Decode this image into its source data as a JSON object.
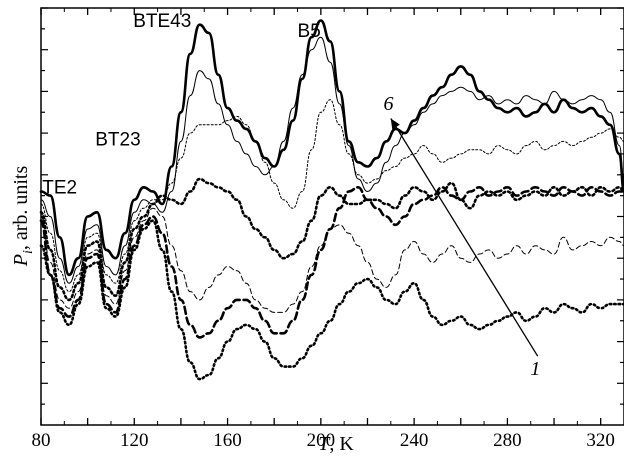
{
  "chart_data": {
    "type": "line",
    "title": "",
    "xlabel": "T, K",
    "ylabel": "P_i, arb. units",
    "xlim": [
      80,
      330
    ],
    "ylim": [
      0,
      10
    ],
    "x_ticks": [
      80,
      100,
      120,
      140,
      160,
      180,
      200,
      220,
      240,
      260,
      280,
      300,
      320
    ],
    "x_tick_labels": [
      "80",
      "120",
      "160",
      "200",
      "240",
      "280",
      "320"
    ],
    "y_tick_labels_shown": false,
    "grid": false,
    "legend": "none",
    "annotations": [
      {
        "text": "TE2",
        "x": 88,
        "y": 5.55
      },
      {
        "text": "BT23",
        "x": 113,
        "y": 6.7
      },
      {
        "text": "BTE43",
        "x": 132,
        "y": 9.55
      },
      {
        "text": "B5",
        "x": 195,
        "y": 9.3
      },
      {
        "text": "6",
        "x": 229,
        "y": 7.55
      },
      {
        "text": "1",
        "x": 292,
        "y": 1.2
      }
    ],
    "arrow": {
      "from": [
        293,
        1.65
      ],
      "to": [
        230,
        7.35
      ],
      "label_from": "1",
      "label_to": "6"
    },
    "series": [
      {
        "style": "thick-solid",
        "x": [
          80,
          84,
          88,
          92,
          96,
          100,
          104,
          108,
          112,
          116,
          120,
          124,
          128,
          132,
          136,
          140,
          144,
          148,
          152,
          156,
          160,
          164,
          168,
          172,
          176,
          180,
          184,
          188,
          192,
          196,
          200,
          204,
          208,
          212,
          216,
          220,
          224,
          228,
          232,
          236,
          240,
          244,
          248,
          252,
          256,
          260,
          264,
          268,
          272,
          276,
          280,
          284,
          288,
          292,
          296,
          300,
          304,
          308,
          312,
          316,
          320,
          324,
          328,
          330
        ],
        "y": [
          5.6,
          5.5,
          4.5,
          3.6,
          4.0,
          5.0,
          5.1,
          4.2,
          4.0,
          4.6,
          5.4,
          5.7,
          5.6,
          5.3,
          6.2,
          7.5,
          8.9,
          9.6,
          9.4,
          8.4,
          7.6,
          7.3,
          7.1,
          6.8,
          6.4,
          6.2,
          6.6,
          7.3,
          8.3,
          9.3,
          9.7,
          9.2,
          8.0,
          6.8,
          6.3,
          6.2,
          6.4,
          6.8,
          7.1,
          7.0,
          7.3,
          7.6,
          7.9,
          8.1,
          8.4,
          8.6,
          8.4,
          8.0,
          7.8,
          7.6,
          7.5,
          7.6,
          7.4,
          7.5,
          7.7,
          7.5,
          7.8,
          7.6,
          7.5,
          7.6,
          7.4,
          7.2,
          6.5,
          5.6
        ]
      },
      {
        "style": "thin-solid",
        "x": [
          80,
          84,
          88,
          92,
          96,
          100,
          104,
          108,
          112,
          116,
          120,
          124,
          128,
          132,
          136,
          140,
          144,
          148,
          152,
          156,
          160,
          164,
          168,
          172,
          176,
          180,
          184,
          188,
          192,
          196,
          200,
          204,
          208,
          212,
          216,
          220,
          224,
          228,
          232,
          236,
          240,
          244,
          248,
          252,
          256,
          260,
          264,
          268,
          272,
          276,
          280,
          284,
          288,
          292,
          296,
          300,
          304,
          308,
          312,
          316,
          320,
          324,
          328,
          330
        ],
        "y": [
          5.4,
          5.0,
          4.0,
          3.4,
          3.8,
          4.7,
          4.8,
          3.8,
          3.6,
          4.3,
          5.1,
          5.4,
          5.3,
          5.1,
          5.6,
          6.8,
          7.9,
          8.5,
          8.3,
          7.7,
          7.2,
          6.8,
          6.5,
          6.2,
          6.0,
          6.2,
          6.8,
          7.6,
          8.4,
          9.0,
          9.3,
          8.7,
          7.7,
          6.7,
          5.9,
          5.6,
          5.8,
          6.3,
          6.7,
          7.0,
          7.2,
          7.5,
          7.7,
          7.9,
          8.0,
          8.1,
          8.0,
          7.8,
          7.9,
          7.7,
          7.8,
          7.7,
          7.9,
          7.8,
          7.7,
          8.0,
          7.8,
          7.7,
          7.8,
          7.9,
          7.8,
          7.5,
          6.7,
          5.9
        ]
      },
      {
        "style": "thin-dashed",
        "x": [
          80,
          84,
          88,
          92,
          96,
          100,
          104,
          108,
          112,
          116,
          120,
          124,
          128,
          132,
          136,
          140,
          144,
          148,
          152,
          156,
          160,
          164,
          168,
          172,
          176,
          180,
          184,
          188,
          192,
          196,
          200,
          204,
          208,
          212,
          216,
          220,
          224,
          228,
          232,
          236,
          240,
          244,
          248,
          252,
          256,
          260,
          264,
          268,
          272,
          276,
          280,
          284,
          288,
          292,
          296,
          300,
          304,
          308,
          312,
          316,
          320,
          324,
          328,
          330
        ],
        "y": [
          5.3,
          4.6,
          3.7,
          3.2,
          3.6,
          4.5,
          4.6,
          3.6,
          3.4,
          4.1,
          4.9,
          5.2,
          5.4,
          5.4,
          5.8,
          6.4,
          7.0,
          7.2,
          7.2,
          7.2,
          7.3,
          7.4,
          7.2,
          6.8,
          6.3,
          5.8,
          5.4,
          5.2,
          5.6,
          6.6,
          7.5,
          7.8,
          7.2,
          6.5,
          6.0,
          5.8,
          5.9,
          6.1,
          6.2,
          6.4,
          6.5,
          6.7,
          6.5,
          6.3,
          6.4,
          6.5,
          6.6,
          6.6,
          6.5,
          6.7,
          6.6,
          6.5,
          6.7,
          6.8,
          6.6,
          6.7,
          6.8,
          6.7,
          6.8,
          6.9,
          7.0,
          7.1,
          6.9,
          6.8
        ]
      },
      {
        "style": "thick-dotted",
        "x": [
          80,
          84,
          88,
          92,
          96,
          100,
          104,
          108,
          112,
          116,
          120,
          124,
          128,
          132,
          136,
          140,
          144,
          148,
          152,
          156,
          160,
          164,
          168,
          172,
          176,
          180,
          184,
          188,
          192,
          196,
          200,
          204,
          208,
          212,
          216,
          220,
          224,
          228,
          232,
          236,
          240,
          244,
          248,
          252,
          256,
          260,
          264,
          268,
          272,
          276,
          280,
          284,
          288,
          292,
          296,
          300,
          304,
          308,
          312,
          316,
          320,
          324,
          328,
          330
        ],
        "y": [
          5.1,
          4.2,
          3.3,
          3.0,
          3.4,
          4.3,
          4.4,
          3.3,
          3.1,
          3.9,
          4.7,
          5.0,
          5.3,
          5.5,
          5.4,
          5.3,
          5.6,
          5.9,
          5.8,
          5.7,
          5.6,
          5.4,
          5.0,
          4.7,
          4.5,
          4.2,
          4.0,
          4.1,
          4.4,
          4.9,
          5.5,
          5.7,
          5.5,
          5.3,
          5.3,
          5.4,
          5.4,
          5.3,
          5.2,
          5.5,
          5.7,
          5.6,
          5.4,
          5.6,
          5.8,
          5.4,
          5.2,
          5.5,
          5.6,
          5.5,
          5.6,
          5.4,
          5.5,
          5.6,
          5.5,
          5.7,
          5.5,
          5.6,
          5.7,
          5.5,
          5.7,
          5.6,
          5.7,
          5.6
        ]
      },
      {
        "style": "thin-dotted",
        "x": [
          80,
          84,
          88,
          92,
          96,
          100,
          104,
          108,
          112,
          116,
          120,
          124,
          128,
          132,
          136,
          140,
          144,
          148,
          152,
          156,
          160,
          164,
          168,
          172,
          176,
          180,
          184,
          188,
          192,
          196,
          200,
          204,
          208,
          212,
          216,
          220,
          224,
          228,
          232,
          236,
          240,
          244,
          248,
          252,
          256,
          260,
          264,
          268,
          272,
          276,
          280,
          284,
          288,
          292,
          296,
          300,
          304,
          308,
          312,
          316,
          320,
          324,
          328,
          330
        ],
        "y": [
          5.0,
          3.9,
          3.0,
          2.8,
          3.2,
          4.1,
          4.2,
          3.1,
          2.9,
          3.7,
          4.5,
          4.9,
          5.2,
          5.0,
          4.3,
          3.7,
          3.2,
          3.0,
          3.3,
          3.6,
          3.8,
          3.7,
          3.4,
          3.0,
          2.8,
          2.7,
          2.7,
          2.9,
          3.2,
          3.8,
          4.3,
          4.7,
          4.8,
          4.6,
          4.3,
          3.9,
          3.5,
          3.3,
          3.6,
          4.2,
          4.4,
          4.1,
          3.9,
          4.1,
          4.3,
          4.0,
          3.9,
          4.1,
          4.2,
          4.0,
          4.1,
          4.3,
          4.1,
          4.3,
          4.2,
          4.1,
          4.5,
          4.2,
          4.3,
          4.4,
          4.3,
          4.5,
          4.4,
          4.3
        ]
      },
      {
        "style": "thick-dashed",
        "x": [
          80,
          84,
          88,
          92,
          96,
          100,
          104,
          108,
          112,
          116,
          120,
          124,
          128,
          132,
          136,
          140,
          144,
          148,
          152,
          156,
          160,
          164,
          168,
          172,
          176,
          180,
          184,
          188,
          192,
          196,
          200,
          204,
          208,
          212,
          216,
          220,
          224,
          228,
          232,
          236,
          240,
          244,
          248,
          252,
          256,
          260,
          264,
          268,
          272,
          276,
          280,
          284,
          288,
          292,
          296,
          300,
          304,
          308,
          312,
          316,
          320,
          324,
          328,
          330
        ],
        "y": [
          4.9,
          3.6,
          2.8,
          2.6,
          3.0,
          4.0,
          4.1,
          2.9,
          2.7,
          3.5,
          4.3,
          4.8,
          5.0,
          4.6,
          3.8,
          3.0,
          2.4,
          2.1,
          2.2,
          2.5,
          2.8,
          3.0,
          3.0,
          2.8,
          2.5,
          2.2,
          2.2,
          2.5,
          3.0,
          3.6,
          4.2,
          4.7,
          5.2,
          5.6,
          5.7,
          5.4,
          5.2,
          5.0,
          4.8,
          5.0,
          5.3,
          5.4,
          5.5,
          5.7,
          5.5,
          5.4,
          5.6,
          5.7,
          5.5,
          5.6,
          5.7,
          5.5,
          5.6,
          5.7,
          5.6,
          5.5,
          5.7,
          5.6,
          5.5,
          5.7,
          5.6,
          5.5,
          5.6,
          5.6
        ]
      },
      {
        "style": "thick-dotted-2",
        "x": [
          80,
          84,
          88,
          92,
          96,
          100,
          104,
          108,
          112,
          116,
          120,
          124,
          128,
          132,
          136,
          140,
          144,
          148,
          152,
          156,
          160,
          164,
          168,
          172,
          176,
          180,
          184,
          188,
          192,
          196,
          200,
          204,
          208,
          212,
          216,
          220,
          224,
          228,
          232,
          236,
          240,
          244,
          248,
          252,
          256,
          260,
          264,
          268,
          272,
          276,
          280,
          284,
          288,
          292,
          296,
          300,
          304,
          308,
          312,
          316,
          320,
          324,
          328,
          330
        ],
        "y": [
          4.3,
          3.6,
          2.7,
          2.4,
          2.9,
          3.8,
          3.9,
          2.8,
          2.6,
          3.3,
          4.2,
          4.7,
          4.9,
          4.2,
          3.2,
          2.3,
          1.5,
          1.1,
          1.2,
          1.6,
          2.0,
          2.3,
          2.4,
          2.3,
          2.0,
          1.6,
          1.4,
          1.4,
          1.6,
          1.9,
          2.2,
          2.5,
          2.9,
          3.2,
          3.4,
          3.5,
          3.3,
          3.0,
          2.9,
          3.2,
          3.4,
          3.0,
          2.6,
          2.4,
          2.5,
          2.6,
          2.4,
          2.3,
          2.4,
          2.5,
          2.6,
          2.7,
          2.5,
          2.6,
          2.8,
          2.7,
          2.9,
          2.8,
          2.7,
          2.9,
          2.8,
          2.9,
          2.9,
          2.9
        ]
      }
    ]
  }
}
